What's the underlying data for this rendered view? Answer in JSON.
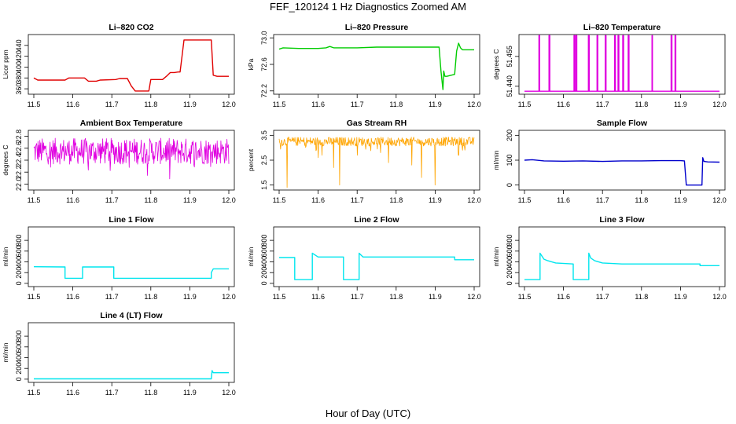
{
  "suptitle": "FEF_120124  1 Hz Diagnostics Zoomed AM",
  "xlabel": "Hour of Day (UTC)",
  "chart_data": [
    {
      "id": "li820-co2",
      "type": "line",
      "title": "Li–820 CO2",
      "ylabel": "Licor ppm",
      "color": "#e00000",
      "xlim": [
        11.5,
        12.0
      ],
      "ylim": [
        350,
        460
      ],
      "yticks": [
        "360",
        "380",
        "400",
        "420",
        "440"
      ],
      "xticks": [
        "11.5",
        "11.6",
        "11.7",
        "11.8",
        "11.9",
        "12.0"
      ],
      "x": [
        11.5,
        11.51,
        11.58,
        11.59,
        11.63,
        11.64,
        11.66,
        11.67,
        11.71,
        11.72,
        11.74,
        11.75,
        11.76,
        11.77,
        11.795,
        11.8,
        11.83,
        11.84,
        11.85,
        11.86,
        11.87,
        11.875,
        11.88,
        11.885,
        11.9,
        11.955,
        11.96,
        11.97,
        12.0
      ],
      "y": [
        380,
        376,
        376,
        380,
        380,
        374,
        374,
        376,
        377,
        379,
        379,
        365,
        356,
        356,
        356,
        377,
        377,
        383,
        390,
        390,
        391,
        391,
        420,
        450,
        450,
        450,
        385,
        383,
        383
      ]
    },
    {
      "id": "li820-pressure",
      "type": "line",
      "title": "Li–820 Pressure",
      "ylabel": "kPa",
      "color": "#00cc00",
      "xlim": [
        11.5,
        12.0
      ],
      "ylim": [
        72.15,
        73.05
      ],
      "yticks": [
        "72.2",
        "72.6",
        "73.0"
      ],
      "xticks": [
        "11.5",
        "11.6",
        "11.7",
        "11.8",
        "11.9",
        "12.0"
      ],
      "x": [
        11.5,
        11.51,
        11.55,
        11.6,
        11.62,
        11.63,
        11.64,
        11.7,
        11.75,
        11.8,
        11.85,
        11.9,
        11.91,
        11.915,
        11.92,
        11.922,
        11.925,
        11.93,
        11.95,
        11.955,
        11.96,
        11.965,
        11.97,
        11.98,
        12.0
      ],
      "y": [
        72.83,
        72.85,
        72.84,
        72.84,
        72.85,
        72.87,
        72.85,
        72.85,
        72.86,
        72.86,
        72.86,
        72.86,
        72.86,
        72.5,
        72.22,
        72.5,
        72.42,
        72.42,
        72.45,
        72.8,
        72.92,
        72.85,
        72.82,
        72.82,
        72.82
      ]
    },
    {
      "id": "li820-temperature",
      "type": "line",
      "title": "Li–820 Temperature",
      "ylabel": "degrees C",
      "color": "#e000e0",
      "xlim": [
        11.5,
        12.0
      ],
      "ylim": [
        51.436,
        51.466
      ],
      "yticks": [
        "51.440",
        "51.455"
      ],
      "xticks": [
        "11.5",
        "11.6",
        "11.7",
        "11.8",
        "11.9",
        "12.0"
      ],
      "x": [
        11.5,
        11.537,
        11.537,
        11.539,
        11.539,
        11.563,
        11.563,
        11.565,
        11.565,
        11.627,
        11.627,
        11.629,
        11.629,
        11.632,
        11.632,
        11.634,
        11.634,
        11.664,
        11.664,
        11.666,
        11.666,
        11.686,
        11.686,
        11.688,
        11.688,
        11.707,
        11.707,
        11.709,
        11.709,
        11.731,
        11.731,
        11.733,
        11.733,
        11.74,
        11.74,
        11.742,
        11.742,
        11.752,
        11.752,
        11.754,
        11.754,
        11.766,
        11.766,
        11.768,
        11.768,
        11.827,
        11.827,
        11.828,
        11.828,
        11.876,
        11.876,
        11.878,
        11.878,
        11.886,
        11.886,
        11.888,
        11.888,
        12.0
      ],
      "y": [
        51.4375,
        51.4375,
        51.4655,
        51.4655,
        51.4375,
        51.4375,
        51.4655,
        51.4655,
        51.4375,
        51.4375,
        51.4655,
        51.4655,
        51.4375,
        51.4375,
        51.4655,
        51.4655,
        51.4375,
        51.4375,
        51.4655,
        51.4655,
        51.4375,
        51.4375,
        51.4655,
        51.4655,
        51.4375,
        51.4375,
        51.4655,
        51.4655,
        51.4375,
        51.4375,
        51.4655,
        51.4655,
        51.4375,
        51.4375,
        51.4655,
        51.4655,
        51.4375,
        51.4375,
        51.4655,
        51.4655,
        51.4375,
        51.4375,
        51.4655,
        51.4655,
        51.4375,
        51.4375,
        51.4655,
        51.4655,
        51.4375,
        51.4375,
        51.4655,
        51.4655,
        51.4375,
        51.4375,
        51.4655,
        51.4655,
        51.4375,
        51.4375
      ]
    },
    {
      "id": "ambient-box-temperature",
      "type": "line",
      "title": "Ambient Box Temperature",
      "ylabel": "degrees C",
      "color": "#e000e0",
      "xlim": [
        11.5,
        12.0
      ],
      "ylim": [
        21.9,
        22.9
      ],
      "yticks": [
        "22.0",
        "22.2",
        "22.4",
        "22.6",
        "22.8"
      ],
      "xticks": [
        "11.5",
        "11.6",
        "11.7",
        "11.8",
        "11.9",
        "12.0"
      ],
      "noise": {
        "center": 22.55,
        "amplitude": 0.22,
        "min": 22.05,
        "max": 22.85
      }
    },
    {
      "id": "gas-stream-rh",
      "type": "line",
      "title": "Gas Stream RH",
      "ylabel": "percent",
      "color": "#ffa500",
      "xlim": [
        11.5,
        12.0
      ],
      "ylim": [
        1.3,
        3.7
      ],
      "yticks": [
        "1.5",
        "2.5",
        "3.5"
      ],
      "xticks": [
        "11.5",
        "11.6",
        "11.7",
        "11.8",
        "11.9",
        "12.0"
      ],
      "noise": {
        "center": 3.25,
        "amplitude": 0.18,
        "min": 1.4,
        "max": 3.6
      },
      "dips": [
        [
          11.52,
          1.4
        ],
        [
          11.6,
          2.6
        ],
        [
          11.61,
          2.7
        ],
        [
          11.64,
          2.2
        ],
        [
          11.655,
          1.5
        ],
        [
          11.7,
          2.7
        ],
        [
          11.76,
          2.8
        ],
        [
          11.78,
          2.4
        ],
        [
          11.84,
          2.3
        ],
        [
          11.865,
          1.8
        ],
        [
          11.9,
          1.5
        ],
        [
          11.96,
          2.7
        ],
        [
          11.97,
          2.9
        ]
      ]
    },
    {
      "id": "sample-flow",
      "type": "line",
      "title": "Sample Flow",
      "ylabel": "ml/min",
      "color": "#0000cc",
      "xlim": [
        11.5,
        12.0
      ],
      "ylim": [
        -20,
        220
      ],
      "yticks": [
        "0",
        "100",
        "200"
      ],
      "xticks": [
        "11.5",
        "11.6",
        "11.7",
        "11.8",
        "11.9",
        "12.0"
      ],
      "x": [
        11.5,
        11.52,
        11.55,
        11.6,
        11.65,
        11.7,
        11.75,
        11.8,
        11.85,
        11.9,
        11.91,
        11.915,
        11.92,
        11.955,
        11.957,
        11.96,
        11.97,
        12.0
      ],
      "y": [
        100,
        102,
        97,
        96,
        97,
        95,
        97,
        97,
        98,
        98,
        97,
        0,
        0,
        0,
        110,
        95,
        93,
        92
      ]
    },
    {
      "id": "line-1-flow",
      "type": "line",
      "title": "Line 1 Flow",
      "ylabel": "ml/min",
      "color": "#00e5ee",
      "xlim": [
        11.5,
        12.0
      ],
      "ylim": [
        -60,
        1050
      ],
      "yticks": [
        "0",
        "200",
        "400",
        "600",
        "800"
      ],
      "xticks": [
        "11.5",
        "11.6",
        "11.7",
        "11.8",
        "11.9",
        "12.0"
      ],
      "x": [
        11.5,
        11.58,
        11.58,
        11.625,
        11.625,
        11.705,
        11.705,
        11.955,
        11.955,
        11.96,
        12.0
      ],
      "y": [
        310,
        305,
        95,
        95,
        305,
        305,
        95,
        95,
        200,
        270,
        270
      ]
    },
    {
      "id": "line-2-flow",
      "type": "line",
      "title": "Line 2 Flow",
      "ylabel": "ml/min",
      "color": "#00e5ee",
      "xlim": [
        11.5,
        12.0
      ],
      "ylim": [
        -60,
        1050
      ],
      "yticks": [
        "0",
        "200",
        "400",
        "600",
        "800"
      ],
      "xticks": [
        "11.5",
        "11.6",
        "11.7",
        "11.8",
        "11.9",
        "12.0"
      ],
      "x": [
        11.5,
        11.54,
        11.54,
        11.585,
        11.585,
        11.6,
        11.665,
        11.665,
        11.705,
        11.705,
        11.715,
        11.95,
        11.95,
        12.0
      ],
      "y": [
        480,
        480,
        70,
        70,
        560,
        490,
        490,
        70,
        70,
        560,
        490,
        490,
        440,
        440
      ]
    },
    {
      "id": "line-3-flow",
      "type": "line",
      "title": "Line 3 Flow",
      "ylabel": "ml/min",
      "color": "#00e5ee",
      "xlim": [
        11.5,
        12.0
      ],
      "ylim": [
        -60,
        1050
      ],
      "yticks": [
        "0",
        "200",
        "400",
        "600",
        "800"
      ],
      "xticks": [
        "11.5",
        "11.6",
        "11.7",
        "11.8",
        "11.9",
        "12.0"
      ],
      "x": [
        11.5,
        11.54,
        11.54,
        11.55,
        11.56,
        11.58,
        11.625,
        11.625,
        11.665,
        11.665,
        11.67,
        11.68,
        11.7,
        11.75,
        11.95,
        11.95,
        12.0
      ],
      "y": [
        70,
        70,
        560,
        450,
        420,
        380,
        360,
        70,
        70,
        560,
        470,
        420,
        380,
        360,
        360,
        330,
        330
      ]
    },
    {
      "id": "line-4-lt-flow",
      "type": "line",
      "title": "Line 4 (LT) Flow",
      "ylabel": "ml/min",
      "color": "#00e5ee",
      "xlim": [
        11.5,
        12.0
      ],
      "ylim": [
        -60,
        1050
      ],
      "yticks": [
        "0",
        "200",
        "400",
        "600",
        "800"
      ],
      "xticks": [
        "11.5",
        "11.6",
        "11.7",
        "11.8",
        "11.9",
        "12.0"
      ],
      "x": [
        11.5,
        11.955,
        11.957,
        11.96,
        12.0
      ],
      "y": [
        5,
        5,
        160,
        120,
        120
      ]
    }
  ]
}
